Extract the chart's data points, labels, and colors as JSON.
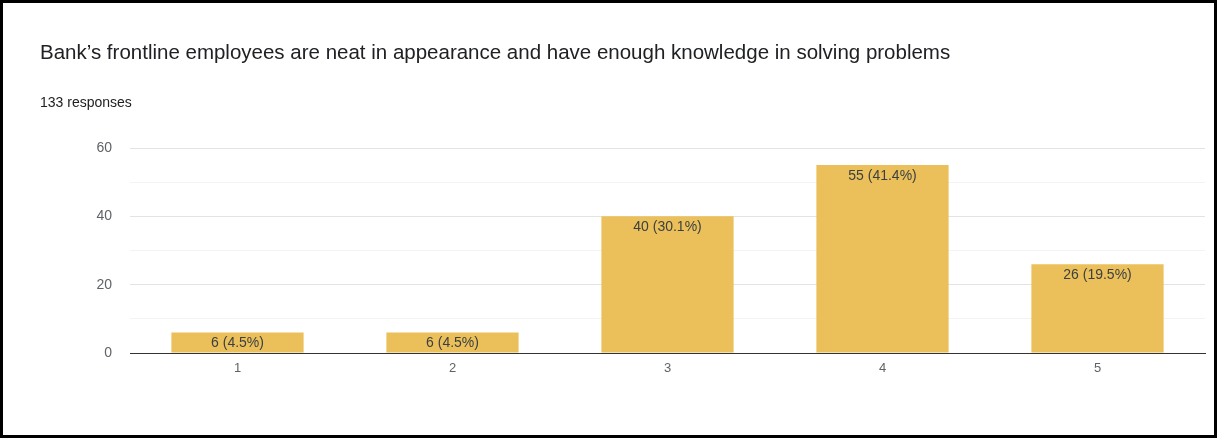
{
  "chart_data": {
    "type": "bar",
    "title": "Bank’s frontline employees are neat in appearance and have enough knowledge in solving problems",
    "subtitle": "133 responses",
    "categories": [
      "1",
      "2",
      "3",
      "4",
      "5"
    ],
    "values": [
      6,
      6,
      40,
      55,
      26
    ],
    "value_labels": [
      "6 (4.5%)",
      "6 (4.5%)",
      "40 (30.1%)",
      "55 (41.4%)",
      "26 (19.5%)"
    ],
    "color": "#ebc05a",
    "ylim": [
      0,
      60
    ],
    "yticks": [
      0,
      {
        "value": 10,
        "label": null
      },
      20,
      {
        "value": 30,
        "label": null
      },
      40,
      {
        "value": 50,
        "label": null
      },
      60
    ],
    "grid": "y",
    "legend": false
  }
}
